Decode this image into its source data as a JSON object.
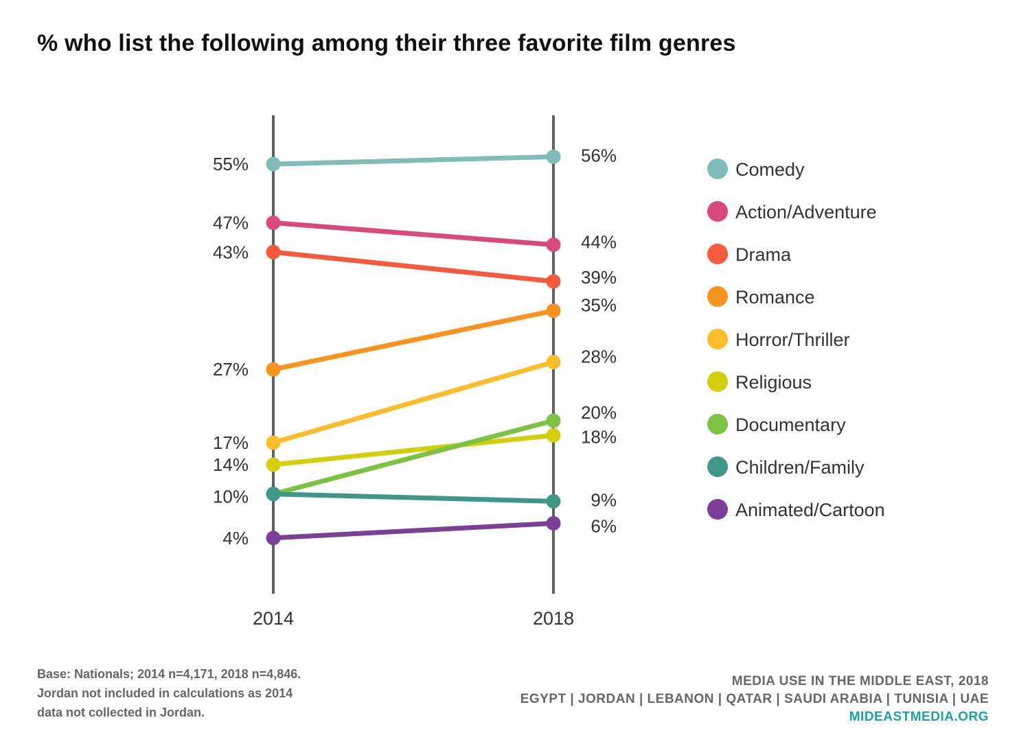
{
  "chart_data": {
    "type": "line",
    "title": "% who list the following among their three favorite film genres",
    "x": [
      "2014",
      "2018"
    ],
    "series": [
      {
        "name": "Comedy",
        "values": [
          55,
          56
        ],
        "labels": [
          "55%",
          "56%"
        ],
        "color": "#7fbcba"
      },
      {
        "name": "Action/Adventure",
        "values": [
          47,
          44
        ],
        "labels": [
          "47%",
          "44%"
        ],
        "color": "#d9497d"
      },
      {
        "name": "Drama",
        "values": [
          43,
          39
        ],
        "labels": [
          "43%",
          "39%"
        ],
        "color": "#f45a3b"
      },
      {
        "name": "Romance",
        "values": [
          27,
          35
        ],
        "labels": [
          "27%",
          "35%"
        ],
        "color": "#f7931e"
      },
      {
        "name": "Horror/Thriller",
        "values": [
          17,
          28
        ],
        "labels": [
          "17%",
          "28%"
        ],
        "color": "#fbbd2a"
      },
      {
        "name": "Religious",
        "values": [
          14,
          18
        ],
        "labels": [
          "14%",
          "18%"
        ],
        "color": "#d4cf0c"
      },
      {
        "name": "Documentary",
        "values": [
          10,
          20
        ],
        "labels": [
          "10%",
          "20%"
        ],
        "color": "#7dc242"
      },
      {
        "name": "Children/Family",
        "values": [
          10,
          9
        ],
        "labels": [
          "10%",
          "9%"
        ],
        "color": "#3f978a"
      },
      {
        "name": "Animated/Cartoon",
        "values": [
          4,
          6
        ],
        "labels": [
          "4%",
          "6%"
        ],
        "color": "#7b3f9a"
      }
    ],
    "axis_color": "#5d6163",
    "legend_position": "right"
  },
  "footnote": {
    "lines": [
      "Base: Nationals; 2014 n=4,171, 2018 n=4,846.",
      "Jordan not included in calculations as 2014",
      "data not collected in Jordan."
    ]
  },
  "source": {
    "title": "MEDIA USE IN THE MIDDLE EAST, 2018",
    "countries": "EGYPT | JORDAN | LEBANON | QATAR | SAUDI ARABIA | TUNISIA | UAE",
    "site": "MIDEASTMEDIA.ORG"
  }
}
